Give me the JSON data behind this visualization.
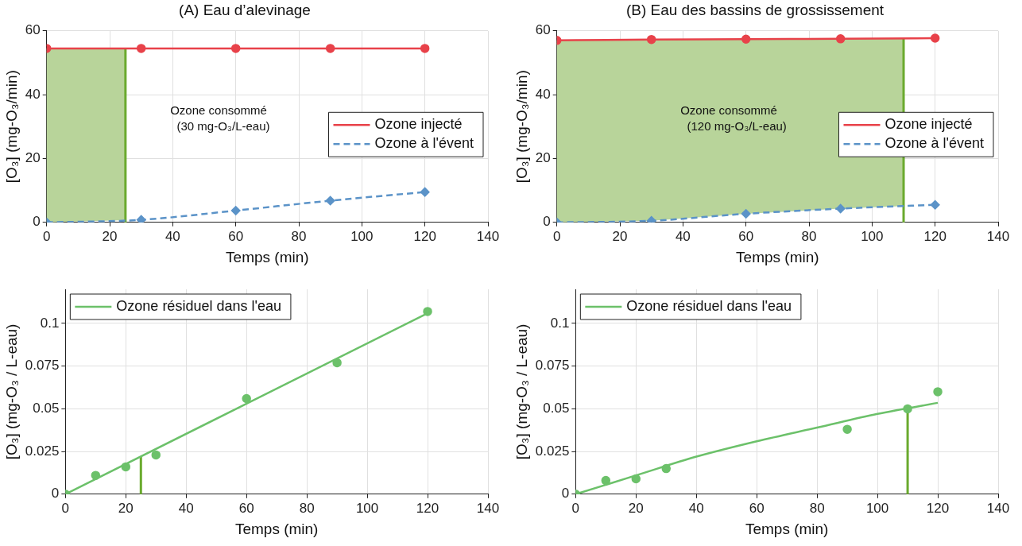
{
  "chart_data": [
    {
      "type": "line",
      "title": "(A) Eau d’alevinage",
      "xlabel": "Temps (min)",
      "ylabel": "[O₃] (mg-O₃/min)",
      "x": [
        0,
        30,
        60,
        90,
        120
      ],
      "xlim": [
        0,
        140
      ],
      "xticks": [
        0,
        20,
        40,
        60,
        80,
        100,
        120,
        140
      ],
      "ylim": [
        0,
        60
      ],
      "yticks": [
        0,
        20,
        40,
        60
      ],
      "grid": true,
      "legend": "right",
      "series": [
        {
          "name": "Ozone injecté",
          "color": "#e8424a",
          "values": [
            54.5,
            54.5,
            54.5,
            54.5,
            54.5
          ],
          "marker": "circle",
          "line_style": "solid"
        },
        {
          "name": "Ozone à l'évent",
          "color": "#5b93c8",
          "values": [
            0,
            0.8,
            3.7,
            6.8,
            9.5
          ],
          "marker": "diamond",
          "line_style": "dashed"
        }
      ],
      "bands": [
        {
          "axis": "x",
          "from": 0,
          "to": 25,
          "color": "#b8d49a"
        }
      ],
      "ref_lines": [
        {
          "axis": "x",
          "value": 25,
          "color": "#6aaa2e"
        }
      ],
      "annotations": [
        "Ozone consommé\n  (30 mg-O₃/L-eau)"
      ]
    },
    {
      "type": "line",
      "title": "(B) Eau des bassins de grossissement",
      "xlabel": "Temps (min)",
      "ylabel": "[O₃] (mg-O₃/min)",
      "x": [
        0,
        30,
        60,
        90,
        120
      ],
      "xlim": [
        0,
        140
      ],
      "xticks": [
        0,
        20,
        40,
        60,
        80,
        100,
        120,
        140
      ],
      "ylim": [
        0,
        60
      ],
      "yticks": [
        0,
        20,
        40,
        60
      ],
      "grid": true,
      "legend": "right",
      "series": [
        {
          "name": "Ozone injecté",
          "color": "#e8424a",
          "values": [
            57,
            57.3,
            57.4,
            57.5,
            57.7
          ],
          "marker": "circle",
          "line_style": "solid"
        },
        {
          "name": "Ozone à l'évent",
          "color": "#5b93c8",
          "values": [
            0,
            0.5,
            2.7,
            4.3,
            5.5
          ],
          "marker": "diamond",
          "line_style": "dashed"
        }
      ],
      "bands": [
        {
          "axis": "x",
          "from": 0,
          "to": 110,
          "color": "#b8d49a"
        }
      ],
      "ref_lines": [
        {
          "axis": "x",
          "value": 110,
          "color": "#6aaa2e"
        }
      ],
      "annotations": [
        "Ozone consommé\n  (120 mg-O₃/L-eau)"
      ]
    },
    {
      "type": "line",
      "xlabel": "Temps (min)",
      "ylabel": "[O₃] (mg-O₃ / L-eau)",
      "xlim": [
        0,
        140
      ],
      "xticks": [
        0,
        20,
        40,
        60,
        80,
        100,
        120,
        140
      ],
      "ylim": [
        0,
        0.12
      ],
      "yticks": [
        0,
        0.025,
        0.05,
        0.075,
        0.1
      ],
      "grid": true,
      "legend": "top left",
      "series": [
        {
          "name": "Ozone résiduel dans l'eau",
          "color": "#6cc16a",
          "x": [
            0,
            120
          ],
          "values": [
            0,
            0.106
          ],
          "marker": "none",
          "line_style": "solid"
        },
        {
          "type": "scatter",
          "color": "#6cc16a",
          "x": [
            0,
            10,
            20,
            30,
            60,
            90,
            120
          ],
          "values": [
            0,
            0.011,
            0.016,
            0.023,
            0.056,
            0.077,
            0.107
          ],
          "marker": "circle"
        }
      ],
      "ref_lines": [
        {
          "axis": "x",
          "value": 25,
          "color": "#6aaa2e"
        }
      ]
    },
    {
      "type": "line",
      "xlabel": "Temps (min)",
      "ylabel": "[O₃] (mg-O₃ / L-eau)",
      "xlim": [
        0,
        140
      ],
      "xticks": [
        0,
        20,
        40,
        60,
        80,
        100,
        120,
        140
      ],
      "ylim": [
        0,
        0.12
      ],
      "yticks": [
        0,
        0.025,
        0.05,
        0.075,
        0.1
      ],
      "grid": true,
      "legend": "top left",
      "series": [
        {
          "name": "Ozone résiduel dans l'eau",
          "color": "#6cc16a",
          "x": [
            0,
            20,
            40,
            60,
            80,
            100,
            120
          ],
          "values": [
            0,
            0.011,
            0.022,
            0.031,
            0.039,
            0.047,
            0.0535
          ],
          "marker": "none",
          "line_style": "solid"
        },
        {
          "type": "scatter",
          "color": "#6cc16a",
          "x": [
            0,
            10,
            20,
            30,
            90,
            110,
            120
          ],
          "values": [
            0,
            0.008,
            0.009,
            0.015,
            0.038,
            0.05,
            0.06
          ],
          "marker": "circle"
        }
      ],
      "ref_lines": [
        {
          "axis": "x",
          "value": 110,
          "color": "#6aaa2e"
        }
      ]
    }
  ]
}
